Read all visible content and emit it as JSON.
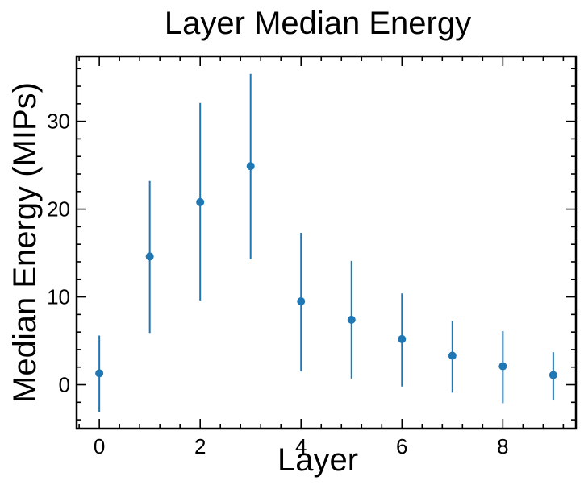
{
  "chart_data": {
    "type": "scatter",
    "title": "Layer Median Energy",
    "xlabel": "Layer",
    "ylabel": "Median Energy (MIPs)",
    "xlim": [
      -0.45,
      9.45
    ],
    "ylim": [
      -5,
      37.4
    ],
    "xticks": [
      0,
      2,
      4,
      6,
      8
    ],
    "yticks": [
      0,
      10,
      20,
      30
    ],
    "grid": false,
    "series": [
      {
        "x": [
          0,
          1,
          2,
          3,
          4,
          5,
          6,
          7,
          8,
          9
        ],
        "values": [
          1.3,
          14.6,
          20.8,
          24.9,
          9.5,
          7.4,
          5.2,
          3.3,
          2.1,
          1.1
        ],
        "err_low": [
          -3.1,
          5.9,
          9.6,
          14.3,
          1.5,
          0.7,
          -0.2,
          -0.9,
          -2.1,
          -1.7
        ],
        "err_high": [
          5.6,
          23.2,
          32.1,
          35.4,
          17.3,
          14.1,
          10.4,
          7.3,
          6.1,
          3.7
        ]
      }
    ],
    "colors": {
      "marker": "#1f77b4",
      "frame": "#000000"
    }
  }
}
